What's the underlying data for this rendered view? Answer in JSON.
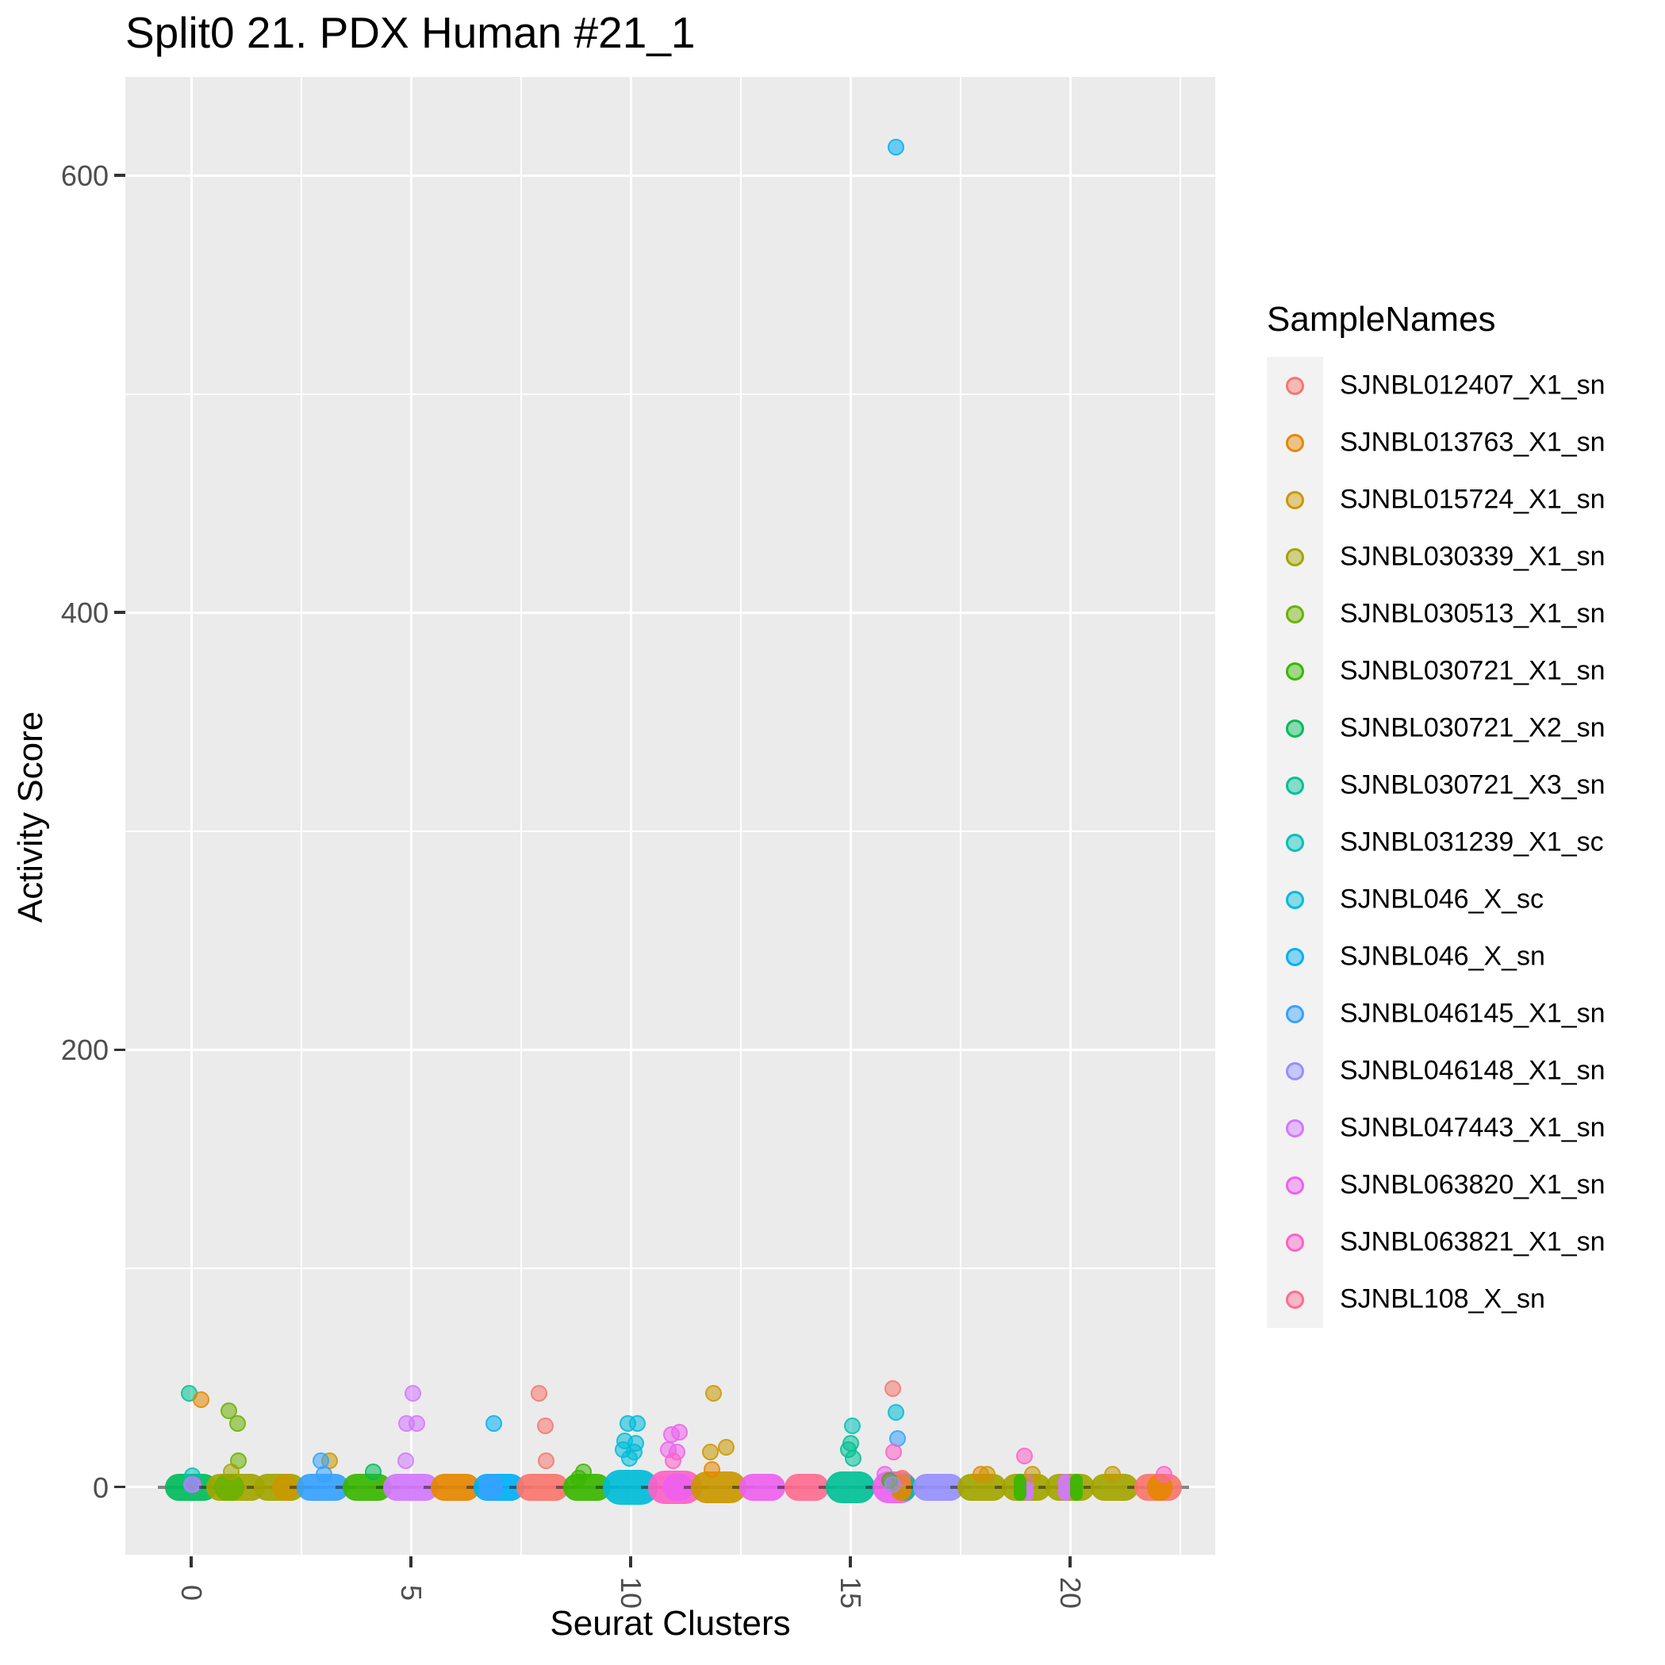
{
  "chart_data": {
    "type": "scatter",
    "title": "Split0 21. PDX Human #21_1",
    "xlabel": "Seurat Clusters",
    "ylabel": "Activity Score",
    "legend_title": "SampleNames",
    "legend_position": "right",
    "grid": true,
    "panel_bg": "#EBEBEB",
    "x_ticks": [
      0,
      5,
      10,
      15,
      20
    ],
    "x_minor": [
      2.5,
      7.5,
      12.5,
      17.5,
      22.5
    ],
    "y_ticks": [
      0,
      200,
      400,
      600
    ],
    "y_minor": [
      100,
      300,
      500
    ],
    "xlim": [
      -1.5,
      23.3
    ],
    "ylim": [
      -31,
      645
    ],
    "samples": [
      {
        "name": "SJNBL012407_X1_sn",
        "color": "#F8766D"
      },
      {
        "name": "SJNBL013763_X1_sn",
        "color": "#E58700"
      },
      {
        "name": "SJNBL015724_X1_sn",
        "color": "#C99800"
      },
      {
        "name": "SJNBL030339_X1_sn",
        "color": "#A3A500"
      },
      {
        "name": "SJNBL030513_X1_sn",
        "color": "#6BB100"
      },
      {
        "name": "SJNBL030721_X1_sn",
        "color": "#39B600"
      },
      {
        "name": "SJNBL030721_X2_sn",
        "color": "#00BC5C"
      },
      {
        "name": "SJNBL030721_X3_sn",
        "color": "#00C096"
      },
      {
        "name": "SJNBL031239_X1_sc",
        "color": "#00C0B8"
      },
      {
        "name": "SJNBL046_X_sc",
        "color": "#00BCD8"
      },
      {
        "name": "SJNBL046_X_sn",
        "color": "#00B0F6"
      },
      {
        "name": "SJNBL046145_X1_sn",
        "color": "#35A2FF"
      },
      {
        "name": "SJNBL046148_X1_sn",
        "color": "#9590FF"
      },
      {
        "name": "SJNBL047443_X1_sn",
        "color": "#D277FF"
      },
      {
        "name": "SJNBL063820_X1_sn",
        "color": "#EE61EE"
      },
      {
        "name": "SJNBL063821_X1_sn",
        "color": "#FF61C7"
      },
      {
        "name": "SJNBL108_X_sn",
        "color": "#FF6C91"
      }
    ],
    "clusters": [
      {
        "x": 0,
        "pills": [
          {
            "s": 7,
            "w": 66
          }
        ],
        "points": [
          {
            "v": 43,
            "s": 8,
            "dx": -3
          },
          {
            "v": 40,
            "s": 2,
            "dx": 12
          },
          {
            "v": 5,
            "s": 9,
            "dx": 1
          },
          {
            "v": 1,
            "s": 15,
            "dx": 2
          },
          {
            "v": 1,
            "s": 13,
            "dx": 0
          }
        ]
      },
      {
        "x": 1,
        "pills": [
          {
            "s": 4,
            "w": 74
          },
          {
            "s": 5,
            "w": 38,
            "dx": -8
          }
        ],
        "points": [
          {
            "v": 35,
            "s": 5,
            "dx": -8
          },
          {
            "v": 29,
            "s": 5,
            "dx": 3
          },
          {
            "v": 12,
            "s": 5,
            "dx": 4
          },
          {
            "v": 7,
            "s": 4,
            "dx": -5
          }
        ]
      },
      {
        "x": 2,
        "pills": [
          {
            "s": 4,
            "w": 64
          },
          {
            "s": 3,
            "w": 34,
            "dx": 8
          }
        ],
        "points": []
      },
      {
        "x": 3,
        "pills": [
          {
            "s": 12,
            "w": 66
          }
        ],
        "points": [
          {
            "v": 12,
            "s": 3,
            "dx": 8
          },
          {
            "v": 12,
            "s": 12,
            "dx": -3
          },
          {
            "v": 6,
            "s": 12,
            "dx": 1
          }
        ]
      },
      {
        "x": 4,
        "pills": [
          {
            "s": 6,
            "w": 62
          }
        ],
        "points": [
          {
            "v": 7,
            "s": 7,
            "dx": 8
          }
        ]
      },
      {
        "x": 5,
        "pills": [
          {
            "s": 14,
            "w": 70
          }
        ],
        "points": [
          {
            "v": 43,
            "s": 14,
            "dx": 2
          },
          {
            "v": 29,
            "s": 14,
            "dx": -6
          },
          {
            "v": 29,
            "s": 14,
            "dx": 7
          },
          {
            "v": 12,
            "s": 14,
            "dx": -7
          }
        ]
      },
      {
        "x": 6,
        "pills": [
          {
            "s": 2,
            "w": 62
          }
        ],
        "points": []
      },
      {
        "x": 7,
        "pills": [
          {
            "s": 11,
            "w": 64
          },
          {
            "s": 12,
            "w": 30,
            "dx": -10
          }
        ],
        "points": [
          {
            "v": 29,
            "s": 11,
            "dx": -6
          }
        ]
      },
      {
        "x": 8,
        "pills": [
          {
            "s": 1,
            "w": 66
          }
        ],
        "points": [
          {
            "v": 43,
            "s": 1,
            "dx": -5
          },
          {
            "v": 28,
            "s": 1,
            "dx": 3
          },
          {
            "v": 12,
            "s": 1,
            "dx": 4
          }
        ]
      },
      {
        "x": 9,
        "pills": [
          {
            "s": 6,
            "w": 60
          }
        ],
        "points": [
          {
            "v": 7,
            "s": 6,
            "dx": -4
          },
          {
            "v": 4,
            "s": 6,
            "dx": -10
          }
        ]
      },
      {
        "x": 10,
        "pills": [
          {
            "s": 10,
            "w": 70,
            "h": 44
          }
        ],
        "points": [
          {
            "v": 29,
            "s": 10,
            "dx": -4
          },
          {
            "v": 29,
            "s": 10,
            "dx": 8
          },
          {
            "v": 21,
            "s": 10,
            "dx": -8
          },
          {
            "v": 20,
            "s": 10,
            "dx": 6
          },
          {
            "v": 17,
            "s": 10,
            "dx": -10
          },
          {
            "v": 16,
            "s": 10,
            "dx": 4
          },
          {
            "v": 13,
            "s": 10,
            "dx": -2
          }
        ]
      },
      {
        "x": 11,
        "pills": [
          {
            "s": 16,
            "w": 68,
            "h": 42
          },
          {
            "s": 15,
            "w": 40,
            "dx": 4
          }
        ],
        "points": [
          {
            "v": 25,
            "s": 15,
            "dx": 6
          },
          {
            "v": 24,
            "s": 15,
            "dx": -4
          },
          {
            "v": 17,
            "s": 15,
            "dx": -8
          },
          {
            "v": 16,
            "s": 15,
            "dx": 3
          },
          {
            "v": 12,
            "s": 16,
            "dx": -2
          }
        ]
      },
      {
        "x": 12,
        "pills": [
          {
            "s": 3,
            "w": 70,
            "h": 40
          }
        ],
        "points": [
          {
            "v": 43,
            "s": 3,
            "dx": -6
          },
          {
            "v": 18,
            "s": 3,
            "dx": 10
          },
          {
            "v": 16,
            "s": 3,
            "dx": -10
          },
          {
            "v": 8,
            "s": 2,
            "dx": -8
          }
        ]
      },
      {
        "x": 13,
        "pills": [
          {
            "s": 15,
            "w": 58
          }
        ],
        "points": []
      },
      {
        "x": 14,
        "pills": [
          {
            "s": 17,
            "w": 56
          }
        ],
        "points": []
      },
      {
        "x": 15,
        "pills": [
          {
            "s": 8,
            "w": 62,
            "h": 40
          }
        ],
        "points": [
          {
            "v": 28,
            "s": 9,
            "dx": 2
          },
          {
            "v": 20,
            "s": 8,
            "dx": 0
          },
          {
            "v": 17,
            "s": 8,
            "dx": -3
          },
          {
            "v": 13,
            "s": 8,
            "dx": 3
          }
        ]
      },
      {
        "x": 16,
        "pills": [
          {
            "s": 15,
            "w": 56,
            "h": 40
          },
          {
            "s": 8,
            "w": 30,
            "dx": 12
          },
          {
            "s": 2,
            "w": 26,
            "dx": 8
          }
        ],
        "points": [
          {
            "v": 613,
            "s": 11,
            "dx": 2
          },
          {
            "v": 45,
            "s": 1,
            "dx": -2
          },
          {
            "v": 34,
            "s": 10,
            "dx": 2
          },
          {
            "v": 22,
            "s": 12,
            "dx": 4
          },
          {
            "v": 16,
            "s": 16,
            "dx": -1
          },
          {
            "v": 6,
            "s": 15,
            "dx": -12
          },
          {
            "v": 4,
            "s": 1,
            "dx": 10
          },
          {
            "v": 3,
            "s": 6,
            "dx": -6
          },
          {
            "v": 1,
            "s": 13,
            "dx": -2
          }
        ]
      },
      {
        "x": 17,
        "pills": [
          {
            "s": 13,
            "w": 64
          }
        ],
        "points": []
      },
      {
        "x": 18,
        "pills": [
          {
            "s": 4,
            "w": 62
          }
        ],
        "points": [
          {
            "v": 6,
            "s": 2,
            "dx": -2
          },
          {
            "v": 6,
            "s": 3,
            "dx": 6
          }
        ]
      },
      {
        "x": 19,
        "pills": [
          {
            "s": 4,
            "w": 62
          },
          {
            "s": 14,
            "w": 14,
            "dx": 2
          },
          {
            "s": 6,
            "w": 16,
            "dx": -8
          }
        ],
        "points": [
          {
            "v": 14,
            "s": 16,
            "dx": -2
          },
          {
            "v": 6,
            "s": 3,
            "dx": 8
          }
        ]
      },
      {
        "x": 20,
        "pills": [
          {
            "s": 4,
            "w": 62
          },
          {
            "s": 14,
            "w": 18,
            "dx": -6
          },
          {
            "s": 6,
            "w": 16,
            "dx": 8
          }
        ],
        "points": []
      },
      {
        "x": 21,
        "pills": [
          {
            "s": 4,
            "w": 60
          }
        ],
        "points": [
          {
            "v": 6,
            "s": 3,
            "dx": -2
          }
        ]
      },
      {
        "x": 22,
        "pills": [
          {
            "s": 1,
            "w": 60
          },
          {
            "s": 2,
            "w": 32,
            "dx": 2
          }
        ],
        "points": [
          {
            "v": 6,
            "s": 16,
            "dx": 8
          }
        ]
      }
    ]
  }
}
